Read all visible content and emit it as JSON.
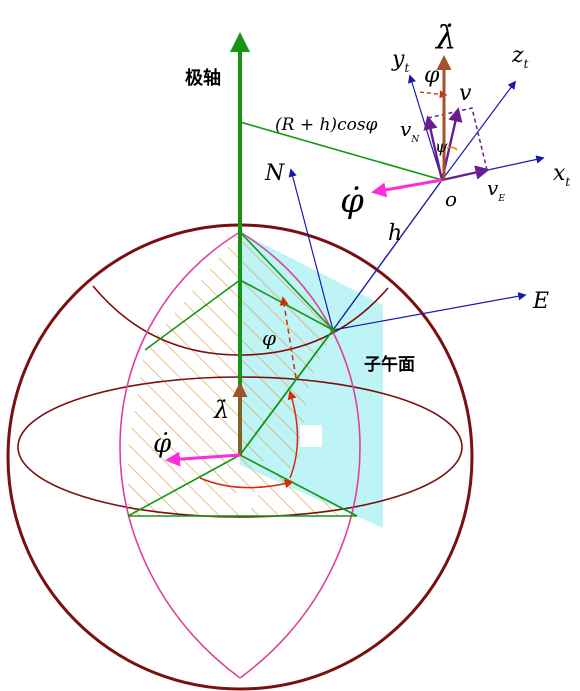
{
  "labels": {
    "polar_axis": "极轴",
    "meridian_plane": "子午面",
    "lambda_dot_top": "λ̇",
    "lambda_dot_mid": "λ̇",
    "phi_dot_top": "φ̇",
    "phi_dot_mid": "φ̇",
    "phi_top": "φ",
    "phi_mid": "φ",
    "psi": "ψ",
    "radius_formula": "(R + h)cosφ",
    "N": "N",
    "E": "E",
    "h": "h",
    "o": "o",
    "v": "v",
    "vN_main": "v",
    "vN_sub": "N",
    "vE_main": "v",
    "vE_sub": "E",
    "xt_main": "x",
    "xt_sub": "t",
    "yt_main": "y",
    "yt_sub": "t",
    "zt_main": "z",
    "zt_sub": "t"
  },
  "colors": {
    "sphere": "#7a0f0f",
    "polar_axis": "#149614",
    "frame_axes": "#1a1aa8",
    "meridian_plane": "#bff4f7",
    "hatch": "#d7a24a",
    "pink_meridian": "#e0409a",
    "magenta_vector": "#ff2bdc",
    "brown_vector": "#a0522d",
    "red_arc": "#d42a10",
    "purple_vector": "#6a1d8e"
  }
}
